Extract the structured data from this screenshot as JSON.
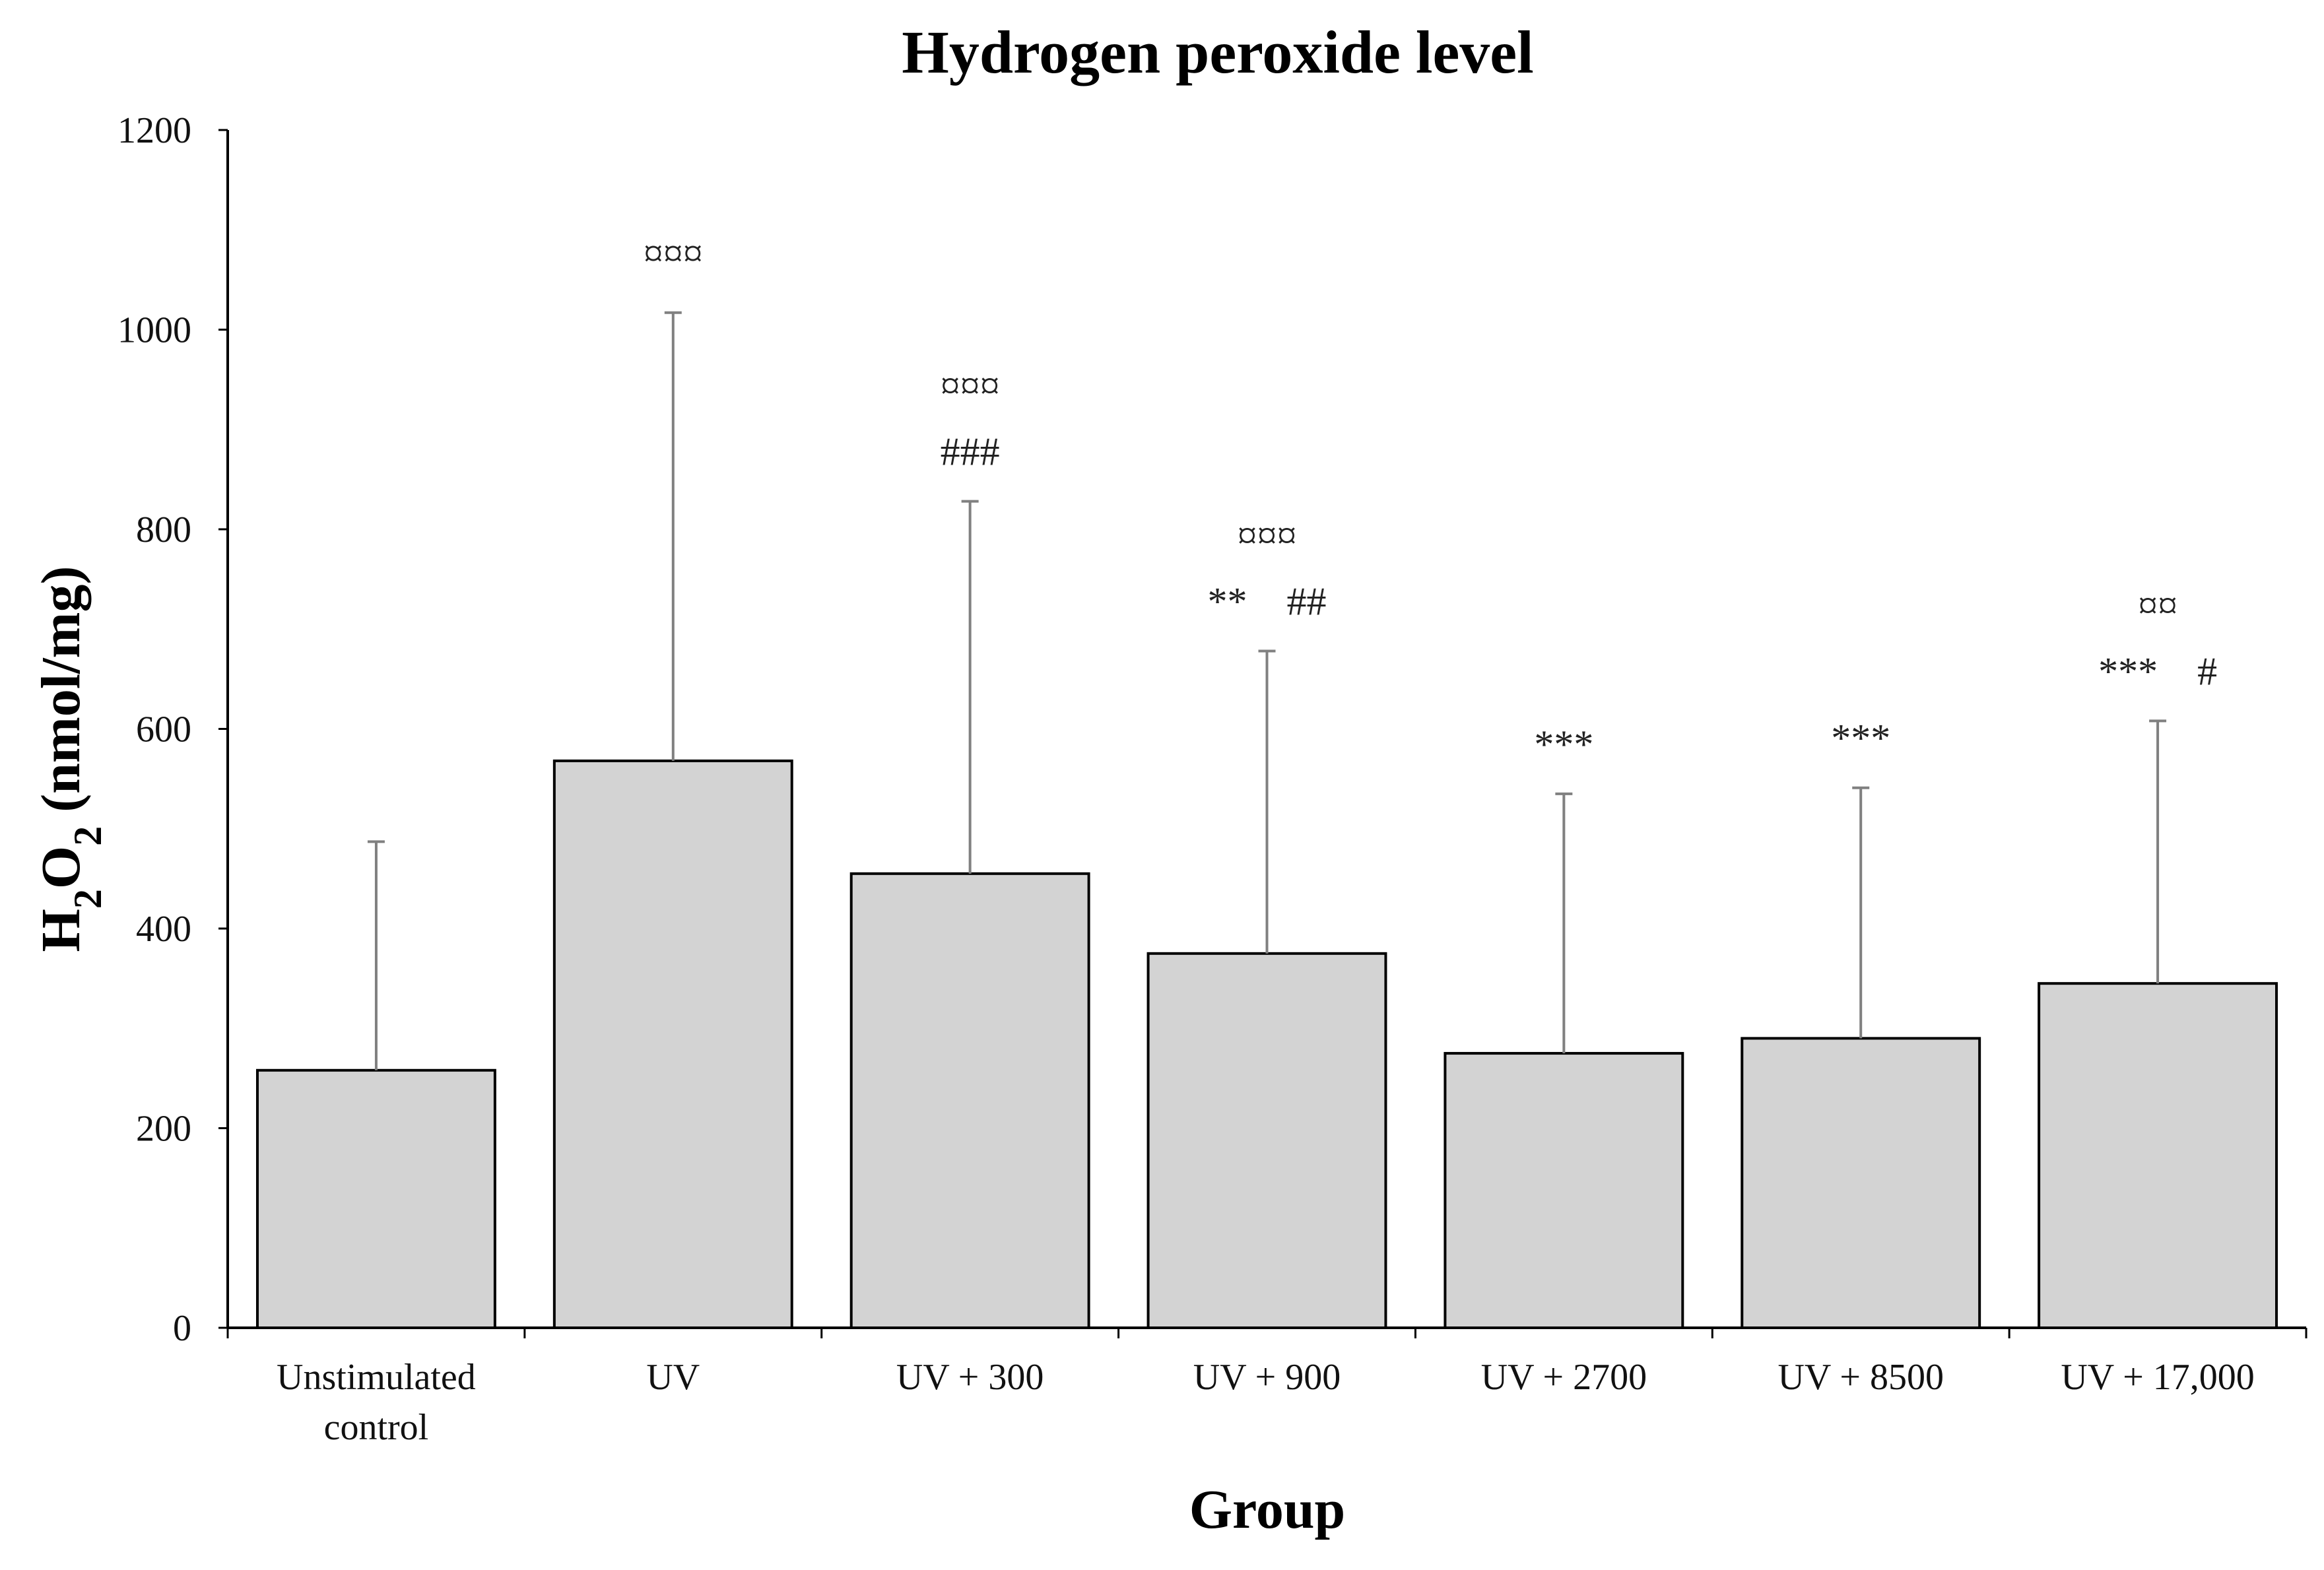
{
  "chart_data": {
    "type": "bar",
    "title": "Hydrogen peroxide level",
    "xlabel": "Group",
    "ylabel": "H2O2 (nmol/mg)",
    "ylabel_parts": {
      "h": "H",
      "sub1": "2",
      "o": "O",
      "sub2": "2",
      "rest": " (nmol/mg)"
    },
    "ylim": [
      0,
      1200
    ],
    "yticks": [
      0,
      200,
      400,
      600,
      800,
      1000,
      1200
    ],
    "categories": [
      [
        "Unstimulated",
        "control"
      ],
      [
        "UV"
      ],
      [
        "UV + 300"
      ],
      [
        "UV + 900"
      ],
      [
        "UV + 2700"
      ],
      [
        "UV + 8500"
      ],
      [
        "UV + 17,000"
      ]
    ],
    "values": [
      258,
      568,
      455,
      375,
      275,
      290,
      345
    ],
    "error_upper": [
      487,
      1017,
      828,
      678,
      535,
      541,
      608
    ],
    "annotations": [
      [],
      [
        {
          "text": "¤¤¤",
          "row": 0
        }
      ],
      [
        {
          "text": "¤¤¤",
          "row": 0
        },
        {
          "text": "###",
          "row": 1
        }
      ],
      [
        {
          "text": "¤¤¤",
          "row": 0
        },
        {
          "text": "**    ##",
          "row": 1
        }
      ],
      [
        {
          "text": "***",
          "row": 1
        }
      ],
      [
        {
          "text": "***",
          "row": 1
        }
      ],
      [
        {
          "text": "¤¤",
          "row": 0
        },
        {
          "text": "***    #",
          "row": 1
        }
      ]
    ],
    "grid": false,
    "bar_color": "#d3d3d3",
    "bar_edge_color": "#000000",
    "error_bar_color": "#808080"
  }
}
